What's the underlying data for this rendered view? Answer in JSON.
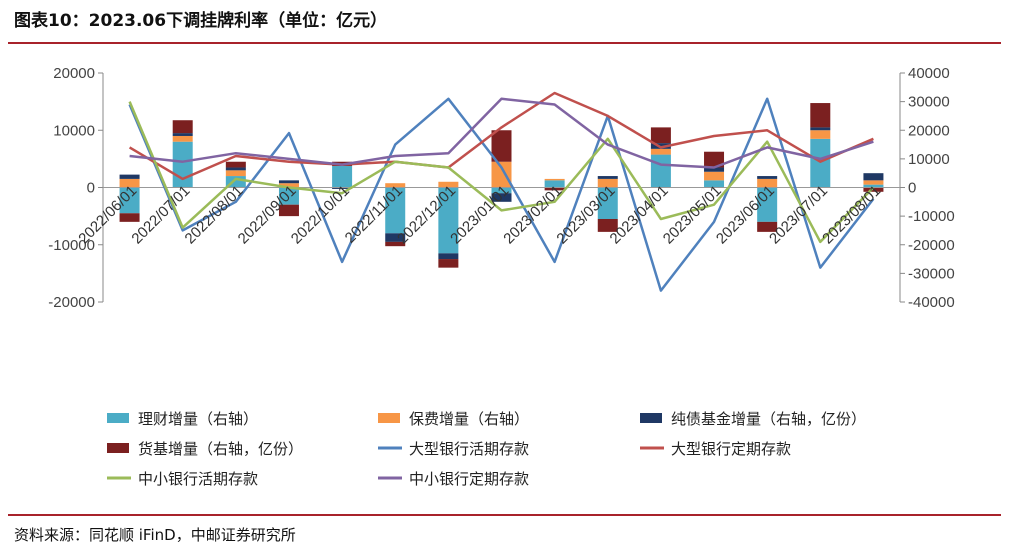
{
  "header": {
    "title": "图表10：2023.06下调挂牌利率（单位：亿元）"
  },
  "footer": {
    "source": "资料来源：同花顺 iFinD，中邮证券研究所"
  },
  "chart_data": {
    "type": "bar+line",
    "title": "图表10：2023.06下调挂牌利率（单位：亿元）",
    "categories": [
      "2022/06/01",
      "2022/07/01",
      "2022/08/01",
      "2022/09/01",
      "2022/10/01",
      "2022/11/01",
      "2022/12/01",
      "2023/01/01",
      "2023/02/01",
      "2023/03/01",
      "2023/04/01",
      "2023/05/01",
      "2023/06/01",
      "2023/07/01",
      "2023/08/01"
    ],
    "y_left": {
      "min": -20000,
      "max": 20000,
      "ticks": [
        20000,
        10000,
        0,
        -10000,
        -20000
      ]
    },
    "y_right": {
      "min": -40000,
      "max": 40000,
      "ticks": [
        40000,
        30000,
        20000,
        10000,
        0,
        -10000,
        -20000,
        -30000,
        -40000
      ]
    },
    "bar_series": [
      {
        "name": "理财增量（右轴）",
        "color": "#4bacc6",
        "values": [
          -9000,
          16000,
          4000,
          -6000,
          7500,
          -16000,
          -23000,
          -2000,
          2500,
          -11000,
          11500,
          2500,
          -12000,
          17000,
          1000
        ]
      },
      {
        "name": "保费增量（右轴）",
        "color": "#f79646",
        "values": [
          3000,
          2000,
          2000,
          1500,
          0,
          1500,
          2000,
          9000,
          500,
          3000,
          2000,
          3000,
          3000,
          3000,
          1500
        ]
      },
      {
        "name": "纯债基金增量（右轴，亿份）",
        "color": "#1f3864",
        "values": [
          1500,
          1000,
          1000,
          1000,
          -500,
          -3000,
          -2000,
          -3000,
          0,
          1000,
          2000,
          1500,
          1000,
          1000,
          2500
        ]
      },
      {
        "name": "货基增量（右轴，亿份）",
        "color": "#7b2020",
        "values": [
          -3000,
          4500,
          2000,
          -4000,
          1500,
          -1500,
          -3000,
          11000,
          -1000,
          -4500,
          5500,
          5500,
          -3500,
          8500,
          -1500
        ]
      }
    ],
    "line_series": [
      {
        "name": "大型银行活期存款",
        "color": "#4f81bd",
        "values": [
          14500,
          -7500,
          -2500,
          9500,
          -13000,
          7500,
          15500,
          3500,
          -13000,
          12500,
          -18000,
          -6000,
          15500,
          -14000,
          -2000
        ]
      },
      {
        "name": "大型银行定期存款",
        "color": "#c0504d",
        "values": [
          7000,
          1500,
          5500,
          4500,
          4000,
          4500,
          3500,
          10500,
          16500,
          12500,
          7000,
          9000,
          10000,
          4500,
          8500
        ]
      },
      {
        "name": "中小银行活期存款",
        "color": "#9bbb59",
        "values": [
          15000,
          -7000,
          1500,
          0,
          -1000,
          4500,
          3500,
          -4000,
          -2500,
          8500,
          -5500,
          -3000,
          8000,
          -9500,
          0
        ]
      },
      {
        "name": "中小银行定期存款",
        "color": "#8064a2",
        "values": [
          5500,
          4500,
          6000,
          5000,
          4000,
          5500,
          6000,
          15500,
          14500,
          7500,
          4000,
          3500,
          7000,
          5000,
          8000
        ]
      }
    ]
  }
}
